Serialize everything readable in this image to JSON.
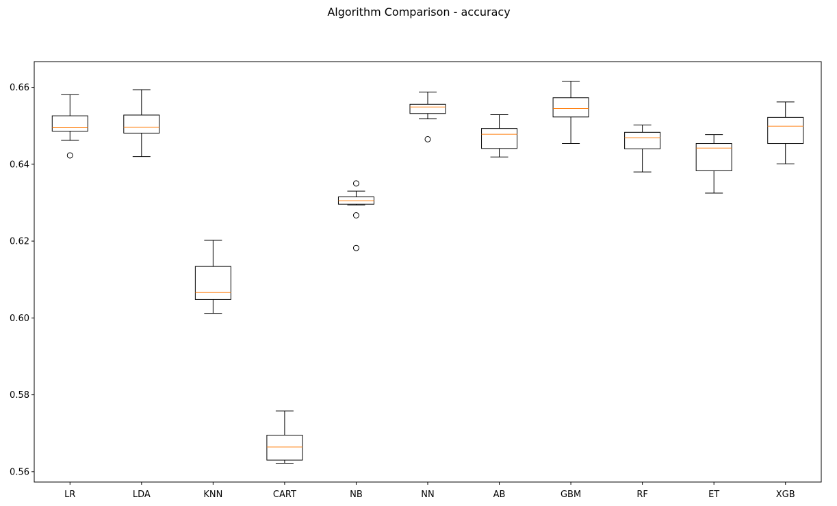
{
  "chart_data": {
    "type": "boxplot",
    "title": "Algorithm Comparison - accuracy",
    "xlabel": "",
    "ylabel": "",
    "ylim": [
      0.5573,
      0.6667
    ],
    "yticks": [
      0.56,
      0.58,
      0.6,
      0.62,
      0.64,
      0.66
    ],
    "ytick_labels": [
      "0.56",
      "0.58",
      "0.60",
      "0.62",
      "0.64",
      "0.66"
    ],
    "categories": [
      "LR",
      "LDA",
      "KNN",
      "CART",
      "NB",
      "NN",
      "AB",
      "GBM",
      "RF",
      "ET",
      "XGB"
    ],
    "boxes": [
      {
        "label": "LR",
        "whislo": 0.6462,
        "q1": 0.6486,
        "med": 0.6495,
        "q3": 0.6526,
        "whishi": 0.6581,
        "fliers": [
          0.6423
        ]
      },
      {
        "label": "LDA",
        "whislo": 0.642,
        "q1": 0.6481,
        "med": 0.6496,
        "q3": 0.6528,
        "whishi": 0.6594,
        "fliers": []
      },
      {
        "label": "KNN",
        "whislo": 0.6012,
        "q1": 0.6048,
        "med": 0.6066,
        "q3": 0.6134,
        "whishi": 0.6202,
        "fliers": []
      },
      {
        "label": "CART",
        "whislo": 0.5622,
        "q1": 0.563,
        "med": 0.5664,
        "q3": 0.5695,
        "whishi": 0.5758,
        "fliers": []
      },
      {
        "label": "NB",
        "whislo": 0.6294,
        "q1": 0.6296,
        "med": 0.6305,
        "q3": 0.6315,
        "whishi": 0.633,
        "fliers": [
          0.635,
          0.6267,
          0.6182
        ]
      },
      {
        "label": "NN",
        "whislo": 0.6518,
        "q1": 0.6532,
        "med": 0.6549,
        "q3": 0.6556,
        "whishi": 0.6588,
        "fliers": [
          0.6465
        ]
      },
      {
        "label": "AB",
        "whislo": 0.6419,
        "q1": 0.6441,
        "med": 0.6478,
        "q3": 0.6493,
        "whishi": 0.6529,
        "fliers": []
      },
      {
        "label": "GBM",
        "whislo": 0.6454,
        "q1": 0.6523,
        "med": 0.6545,
        "q3": 0.6573,
        "whishi": 0.6616,
        "fliers": []
      },
      {
        "label": "RF",
        "whislo": 0.638,
        "q1": 0.644,
        "med": 0.6469,
        "q3": 0.6483,
        "whishi": 0.6502,
        "fliers": []
      },
      {
        "label": "ET",
        "whislo": 0.6325,
        "q1": 0.6383,
        "med": 0.6442,
        "q3": 0.6454,
        "whishi": 0.6477,
        "fliers": []
      },
      {
        "label": "XGB",
        "whislo": 0.6401,
        "q1": 0.6454,
        "med": 0.6499,
        "q3": 0.6522,
        "whishi": 0.6562,
        "fliers": []
      }
    ],
    "grid": false,
    "legend": "none",
    "colors": {
      "box": "#000000",
      "median": "#ff7f0e",
      "flier": "#000000",
      "background": "#ffffff"
    }
  }
}
